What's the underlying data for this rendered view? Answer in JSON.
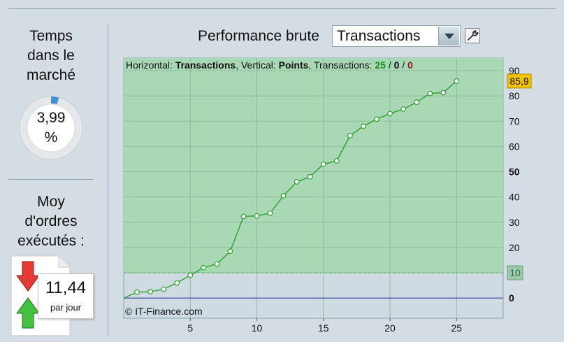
{
  "left_panel": {
    "time_title": [
      "Temps",
      "dans le",
      "marché"
    ],
    "time_value": "3,99",
    "time_unit": "%",
    "time_fraction": 0.0399,
    "orders_title": [
      "Moy",
      "d'ordres",
      "exécutés :"
    ],
    "orders_value": "11,44",
    "orders_unit": "par jour"
  },
  "header": {
    "label": "Performance brute",
    "select_value": "Transactions"
  },
  "chart_info": {
    "h_prefix": "Horizontal: ",
    "h_value": "Transactions",
    "v_prefix": ", Vertical: ",
    "v_value": "Points",
    "t_prefix": ", Transactions: ",
    "t_green": "25",
    "sep1": " / ",
    "t_black": "0",
    "sep2": " / ",
    "t_red": "0"
  },
  "copyright": "© IT-Finance.com",
  "colors": {
    "profit_zone": "#a8d8b4",
    "line": "#2ca02c",
    "zero_line": "#3333aa",
    "threshold_line": "#4cb24c",
    "last_value_badge": "#f2c200",
    "threshold_badge": "#9ec9ab"
  },
  "chart_data": {
    "type": "line",
    "xlabel": "",
    "ylabel": "",
    "x": [
      0,
      1,
      2,
      3,
      4,
      5,
      6,
      7,
      8,
      9,
      10,
      11,
      12,
      13,
      14,
      15,
      16,
      17,
      18,
      19,
      20,
      21,
      22,
      23,
      24,
      25
    ],
    "y": [
      0,
      2.3,
      2.5,
      3.5,
      6,
      9,
      12,
      13.5,
      18.5,
      32.3,
      32.5,
      33.6,
      40.5,
      46,
      48,
      53,
      54.3,
      64.3,
      68,
      70.8,
      73,
      74.8,
      77.5,
      81,
      81.3,
      85.9
    ],
    "xlim": [
      0,
      28.5
    ],
    "ylim": [
      -8,
      95
    ],
    "xticks": [
      5,
      10,
      15,
      20,
      25
    ],
    "yticks": [
      0,
      10,
      20,
      30,
      40,
      50,
      60,
      70,
      80,
      90
    ],
    "ytick_labels": [
      "0",
      "10",
      "20",
      "30",
      "40",
      "50",
      "60",
      "70",
      "80",
      "90"
    ],
    "bold_yticks": [
      0,
      50
    ],
    "threshold": 10,
    "threshold_label": "10",
    "last_value_label": "85,9",
    "grid": true
  }
}
